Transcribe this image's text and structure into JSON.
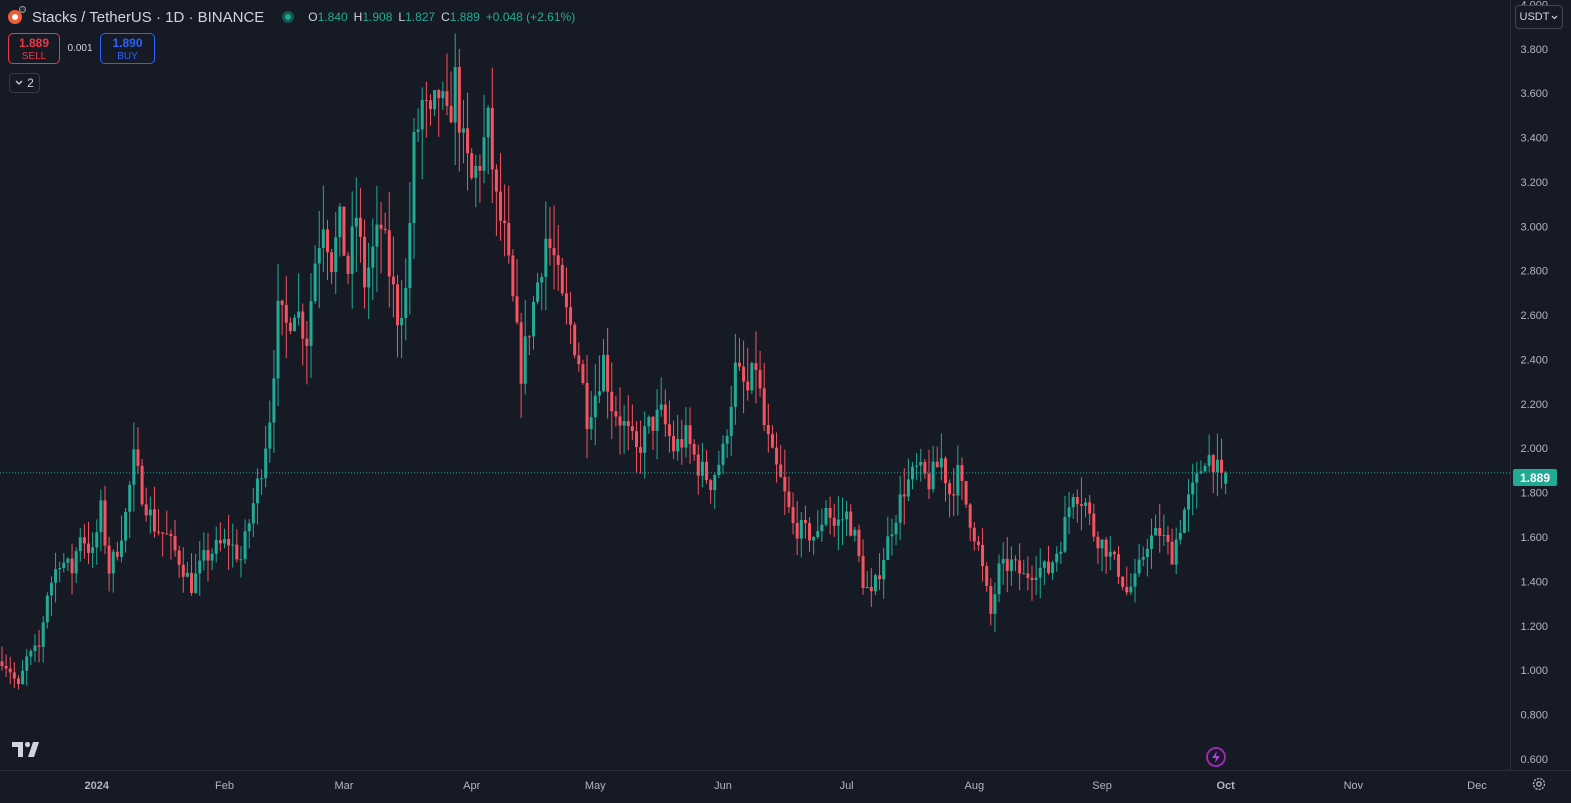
{
  "header": {
    "symbol_title": "Stacks / TetherUS · 1D · BINANCE",
    "ohlc": [
      {
        "k": "O",
        "v": "1.840"
      },
      {
        "k": "H",
        "v": "1.908"
      },
      {
        "k": "L",
        "v": "1.827"
      },
      {
        "k": "C",
        "v": "1.889"
      },
      {
        "k": "",
        "v": "+0.048 (+2.61%)"
      }
    ]
  },
  "trade": {
    "sell_price": "1.889",
    "sell_label": "SELL",
    "spread": "0.001",
    "buy_price": "1.890",
    "buy_label": "BUY"
  },
  "indicators_count": "2",
  "currency_selector": "USDT",
  "last_price": "1.889",
  "colors": {
    "background": "#161a25",
    "up": "#22ab94",
    "down": "#f7525f",
    "axis_text": "#b2b5be",
    "price_line": "#22ab94"
  },
  "chart_data": {
    "type": "candlestick",
    "title": "Stacks / TetherUS · 1D · BINANCE",
    "y_ticks": [
      "4.000",
      "3.800",
      "3.600",
      "3.400",
      "3.200",
      "3.000",
      "2.800",
      "2.600",
      "2.400",
      "2.200",
      "2.000",
      "1.800",
      "1.600",
      "1.400",
      "1.200",
      "1.000",
      "0.800",
      "0.600"
    ],
    "x_ticks": [
      {
        "label": "2024",
        "date": "2024-01-01",
        "bold": true
      },
      {
        "label": "Feb",
        "date": "2024-02-01"
      },
      {
        "label": "Mar",
        "date": "2024-03-01"
      },
      {
        "label": "Apr",
        "date": "2024-04-01"
      },
      {
        "label": "May",
        "date": "2024-05-01"
      },
      {
        "label": "Jun",
        "date": "2024-06-01"
      },
      {
        "label": "Jul",
        "date": "2024-07-01"
      },
      {
        "label": "Aug",
        "date": "2024-08-01"
      },
      {
        "label": "Sep",
        "date": "2024-09-01"
      },
      {
        "label": "Oct",
        "date": "2024-10-01",
        "bold": true
      },
      {
        "label": "Nov",
        "date": "2024-11-01"
      },
      {
        "label": "Dec",
        "date": "2024-12-01"
      }
    ],
    "ylim": [
      0.55,
      4.02
    ],
    "last_close": 1.889,
    "price_anchors": [
      [
        "2023-12-09",
        1.05
      ],
      [
        "2023-12-11",
        1.0
      ],
      [
        "2023-12-13",
        0.92
      ],
      [
        "2023-12-15",
        1.05
      ],
      [
        "2023-12-18",
        1.1
      ],
      [
        "2023-12-20",
        1.35
      ],
      [
        "2023-12-23",
        1.5
      ],
      [
        "2023-12-26",
        1.45
      ],
      [
        "2023-12-28",
        1.62
      ],
      [
        "2023-12-31",
        1.52
      ],
      [
        "2024-01-02",
        1.72
      ],
      [
        "2024-01-04",
        1.45
      ],
      [
        "2024-01-06",
        1.55
      ],
      [
        "2024-01-08",
        1.7
      ],
      [
        "2024-01-10",
        1.95
      ],
      [
        "2024-01-12",
        1.8
      ],
      [
        "2024-01-15",
        1.65
      ],
      [
        "2024-01-18",
        1.6
      ],
      [
        "2024-01-21",
        1.5
      ],
      [
        "2024-01-24",
        1.38
      ],
      [
        "2024-01-27",
        1.5
      ],
      [
        "2024-01-30",
        1.55
      ],
      [
        "2024-02-02",
        1.58
      ],
      [
        "2024-02-05",
        1.5
      ],
      [
        "2024-02-08",
        1.75
      ],
      [
        "2024-02-10",
        1.92
      ],
      [
        "2024-02-12",
        2.15
      ],
      [
        "2024-02-14",
        2.6
      ],
      [
        "2024-02-16",
        2.55
      ],
      [
        "2024-02-18",
        2.65
      ],
      [
        "2024-02-21",
        2.5
      ],
      [
        "2024-02-23",
        2.85
      ],
      [
        "2024-02-25",
        3.05
      ],
      [
        "2024-02-27",
        2.85
      ],
      [
        "2024-02-29",
        3.0
      ],
      [
        "2024-03-02",
        2.8
      ],
      [
        "2024-03-04",
        3.05
      ],
      [
        "2024-03-06",
        2.75
      ],
      [
        "2024-03-08",
        2.88
      ],
      [
        "2024-03-10",
        3.0
      ],
      [
        "2024-03-12",
        2.8
      ],
      [
        "2024-03-14",
        2.6
      ],
      [
        "2024-03-16",
        2.7
      ],
      [
        "2024-03-18",
        3.35
      ],
      [
        "2024-03-20",
        3.55
      ],
      [
        "2024-03-22",
        3.45
      ],
      [
        "2024-03-24",
        3.6
      ],
      [
        "2024-03-26",
        3.45
      ],
      [
        "2024-03-28",
        3.65
      ],
      [
        "2024-03-30",
        3.35
      ],
      [
        "2024-04-01",
        3.2
      ],
      [
        "2024-04-03",
        3.3
      ],
      [
        "2024-04-05",
        3.45
      ],
      [
        "2024-04-07",
        3.1
      ],
      [
        "2024-04-09",
        2.95
      ],
      [
        "2024-04-11",
        2.65
      ],
      [
        "2024-04-13",
        2.35
      ],
      [
        "2024-04-15",
        2.55
      ],
      [
        "2024-04-17",
        2.75
      ],
      [
        "2024-04-19",
        2.95
      ],
      [
        "2024-04-21",
        2.85
      ],
      [
        "2024-04-23",
        2.65
      ],
      [
        "2024-04-25",
        2.55
      ],
      [
        "2024-04-27",
        2.4
      ],
      [
        "2024-04-29",
        2.15
      ],
      [
        "2024-05-01",
        2.25
      ],
      [
        "2024-05-03",
        2.4
      ],
      [
        "2024-05-05",
        2.2
      ],
      [
        "2024-05-08",
        2.1
      ],
      [
        "2024-05-11",
        1.98
      ],
      [
        "2024-05-14",
        2.1
      ],
      [
        "2024-05-17",
        2.15
      ],
      [
        "2024-05-20",
        2.0
      ],
      [
        "2024-05-23",
        2.05
      ],
      [
        "2024-05-26",
        1.92
      ],
      [
        "2024-05-29",
        1.85
      ],
      [
        "2024-06-01",
        1.98
      ],
      [
        "2024-06-04",
        2.35
      ],
      [
        "2024-06-07",
        2.25
      ],
      [
        "2024-06-09",
        2.38
      ],
      [
        "2024-06-11",
        2.1
      ],
      [
        "2024-06-13",
        1.95
      ],
      [
        "2024-06-15",
        1.85
      ],
      [
        "2024-06-18",
        1.65
      ],
      [
        "2024-06-21",
        1.62
      ],
      [
        "2024-06-24",
        1.6
      ],
      [
        "2024-06-26",
        1.75
      ],
      [
        "2024-06-28",
        1.65
      ],
      [
        "2024-07-01",
        1.7
      ],
      [
        "2024-07-03",
        1.6
      ],
      [
        "2024-07-05",
        1.4
      ],
      [
        "2024-07-07",
        1.33
      ],
      [
        "2024-07-09",
        1.45
      ],
      [
        "2024-07-12",
        1.65
      ],
      [
        "2024-07-15",
        1.82
      ],
      [
        "2024-07-18",
        1.9
      ],
      [
        "2024-07-21",
        1.85
      ],
      [
        "2024-07-24",
        1.95
      ],
      [
        "2024-07-26",
        1.8
      ],
      [
        "2024-07-28",
        1.88
      ],
      [
        "2024-07-30",
        1.75
      ],
      [
        "2024-08-02",
        1.55
      ],
      [
        "2024-08-05",
        1.25
      ],
      [
        "2024-08-07",
        1.45
      ],
      [
        "2024-08-10",
        1.48
      ],
      [
        "2024-08-13",
        1.42
      ],
      [
        "2024-08-16",
        1.46
      ],
      [
        "2024-08-19",
        1.45
      ],
      [
        "2024-08-22",
        1.58
      ],
      [
        "2024-08-25",
        1.82
      ],
      [
        "2024-08-28",
        1.75
      ],
      [
        "2024-08-30",
        1.62
      ],
      [
        "2024-09-02",
        1.55
      ],
      [
        "2024-09-05",
        1.45
      ],
      [
        "2024-09-07",
        1.35
      ],
      [
        "2024-09-09",
        1.4
      ],
      [
        "2024-09-12",
        1.58
      ],
      [
        "2024-09-15",
        1.62
      ],
      [
        "2024-09-18",
        1.52
      ],
      [
        "2024-09-21",
        1.72
      ],
      [
        "2024-09-24",
        1.85
      ],
      [
        "2024-09-26",
        1.97
      ],
      [
        "2024-09-28",
        1.95
      ],
      [
        "2024-09-30",
        1.84
      ],
      [
        "2024-10-01",
        1.889
      ]
    ]
  }
}
